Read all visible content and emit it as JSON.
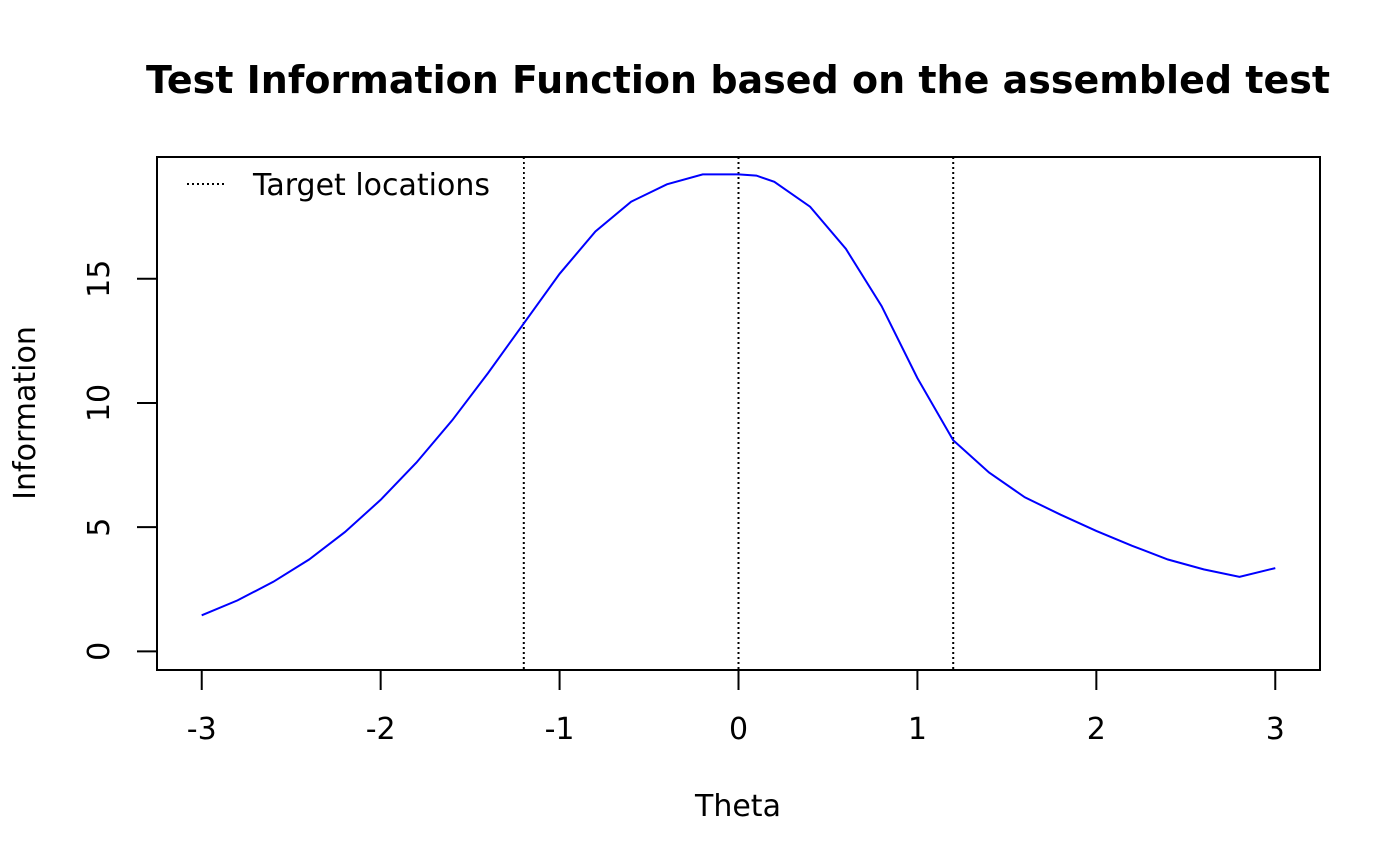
{
  "chart_data": {
    "type": "line",
    "title": "Test Information Function based on the assembled test",
    "xlabel": "Theta",
    "ylabel": "Information",
    "xlim": [
      -3.25,
      3.25
    ],
    "ylim": [
      -0.75,
      19.9
    ],
    "x_ticks": [
      -3,
      -2,
      -1,
      0,
      1,
      2,
      3
    ],
    "x_tick_labels": [
      "-3",
      "-2",
      "-1",
      "0",
      "1",
      "2",
      "3"
    ],
    "y_ticks": [
      0,
      5,
      10,
      15
    ],
    "y_tick_labels": [
      "0",
      "5",
      "10",
      "15"
    ],
    "grid": false,
    "legend": {
      "position": "top-left",
      "entries": [
        {
          "label": "Target locations",
          "line_style": "dotted",
          "color": "#000000"
        }
      ]
    },
    "series": [
      {
        "color": "#0000ff",
        "x": [
          -3.0,
          -2.8,
          -2.6,
          -2.4,
          -2.2,
          -2.0,
          -1.8,
          -1.6,
          -1.4,
          -1.2,
          -1.0,
          -0.8,
          -0.6,
          -0.4,
          -0.2,
          0.0,
          0.1,
          0.2,
          0.4,
          0.6,
          0.8,
          1.0,
          1.2,
          1.4,
          1.6,
          1.8,
          2.0,
          2.2,
          2.4,
          2.6,
          2.8,
          3.0
        ],
        "y": [
          1.45,
          2.05,
          2.8,
          3.7,
          4.8,
          6.1,
          7.6,
          9.3,
          11.2,
          13.2,
          15.2,
          16.9,
          18.1,
          18.8,
          19.2,
          19.2,
          19.15,
          18.9,
          17.9,
          16.2,
          13.9,
          11.0,
          8.5,
          7.2,
          6.2,
          5.5,
          4.85,
          4.25,
          3.7,
          3.3,
          3.0,
          3.35
        ]
      }
    ],
    "target_locations": [
      -1.2,
      0,
      1.2
    ]
  }
}
